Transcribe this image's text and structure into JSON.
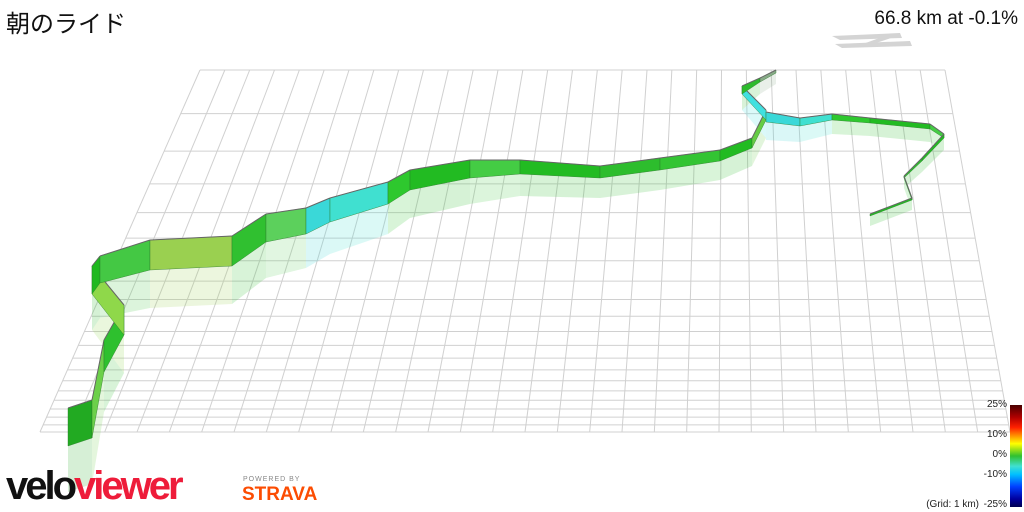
{
  "header": {
    "title": "朝のライド",
    "stats": "66.8 km at -0.1%"
  },
  "legend": {
    "labels": [
      "25%",
      "10%",
      "0%",
      "-10%",
      "-25%"
    ],
    "grid_label": "(Grid: 1 km)",
    "colors": {
      "max": "#4a0000",
      "high": "#ff2000",
      "mid_high": "#ffff00",
      "zero": "#30c030",
      "mid_low": "#40e0d0",
      "low": "#0040ff",
      "min": "#000050"
    }
  },
  "branding": {
    "logo_velo": "velo",
    "logo_viewer": "viewer",
    "powered_by": "POWERED BY",
    "strava": "STRAVA"
  },
  "colors": {
    "grid": "#d0d0d0",
    "route_main": "#22bb22",
    "route_climb": "#7fd04a",
    "route_descent": "#40d8d8"
  }
}
